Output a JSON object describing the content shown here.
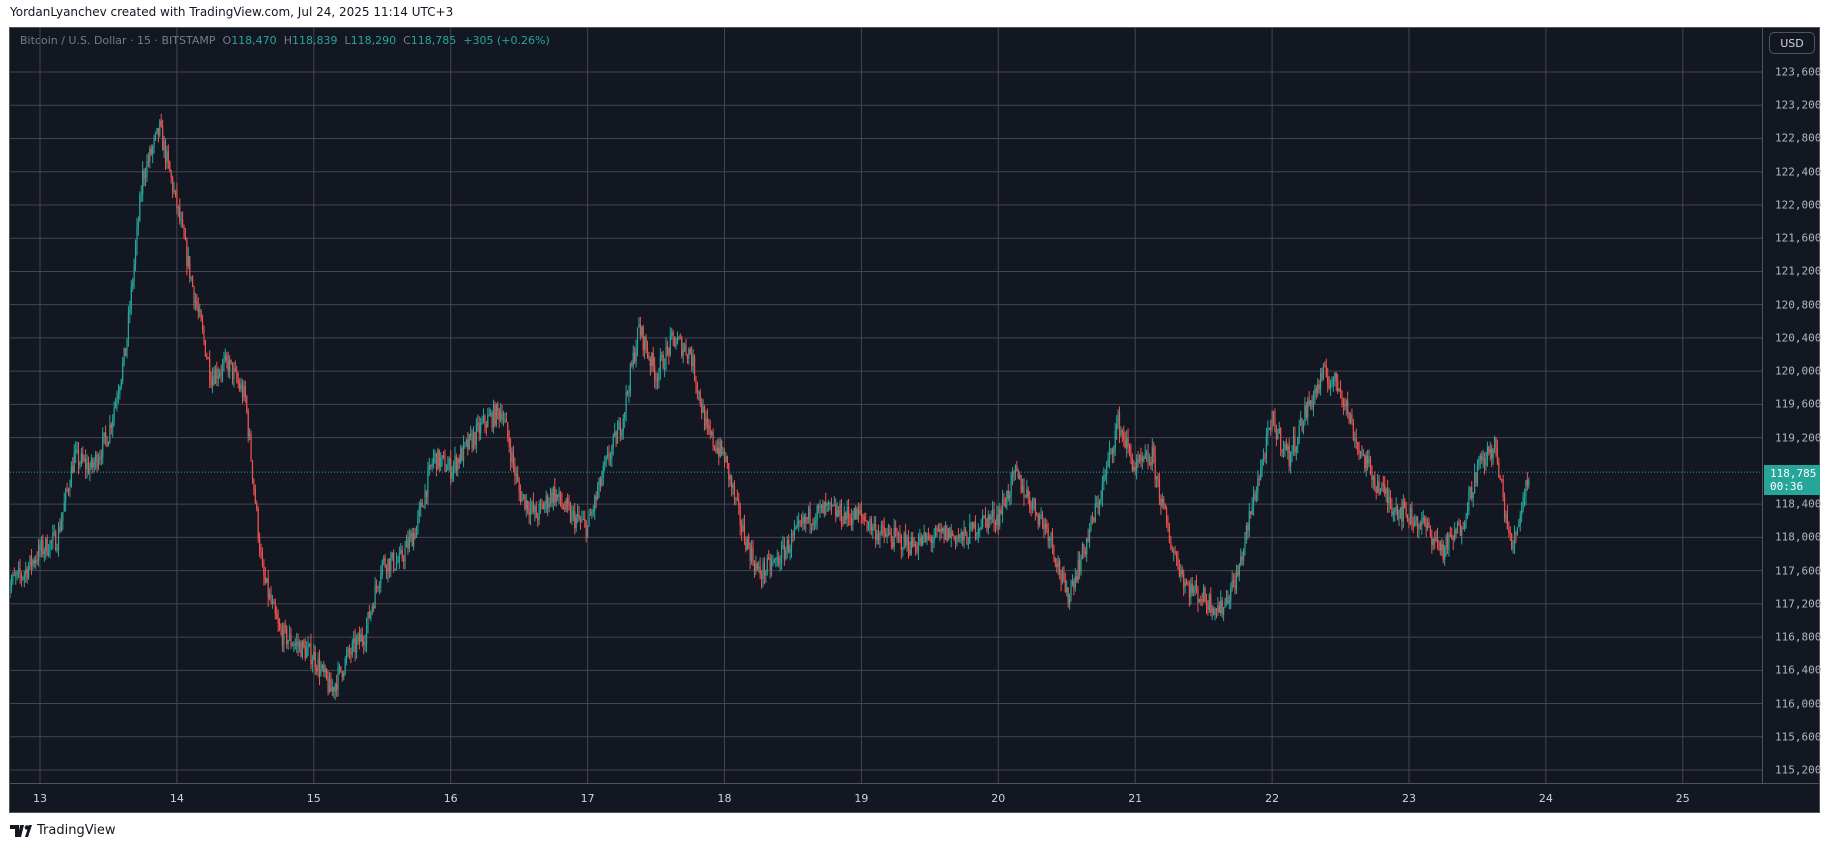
{
  "credit": "YordanLyanchev created with TradingView.com, Jul 24, 2025 11:14 UTC+3",
  "footer": {
    "brand": "TradingView"
  },
  "legend": {
    "symbol": "Bitcoin / U.S. Dollar · 15 · BITSTAMP",
    "o_label": "O",
    "o": "118,470",
    "h_label": "H",
    "h": "118,839",
    "l_label": "L",
    "l": "118,290",
    "c_label": "C",
    "c": "118,785",
    "change": "+305 (+0.26%)"
  },
  "price_axis": {
    "currency": "USD",
    "last_price": "118,785",
    "countdown": "00:36"
  },
  "colors": {
    "background": "#131722",
    "up": "#26a69a",
    "down": "#ef5350",
    "grid": "#434651"
  },
  "chart_data": {
    "type": "candlestick",
    "interval": "15m",
    "symbol": "BTCUSD",
    "ylim": [
      114900,
      124100
    ],
    "y_ticks": [
      "123,600",
      "123,200",
      "122,800",
      "122,400",
      "122,000",
      "121,600",
      "121,200",
      "120,800",
      "120,400",
      "120,000",
      "119,600",
      "119,200",
      "118,400",
      "118,000",
      "117,600",
      "117,200",
      "116,800",
      "116,400",
      "116,000",
      "115,600",
      "115,200"
    ],
    "y_tick_values": [
      123600,
      123200,
      122800,
      122400,
      122000,
      121600,
      121200,
      120800,
      120400,
      120000,
      119600,
      119200,
      118400,
      118000,
      117600,
      117200,
      116800,
      116400,
      116000,
      115600,
      115200
    ],
    "x_ticks": [
      "13",
      "14",
      "15",
      "16",
      "17",
      "18",
      "19",
      "20",
      "21",
      "22",
      "23",
      "24",
      "25"
    ],
    "x_tick_days": [
      13,
      14,
      15,
      16,
      17,
      17.999,
      19,
      20,
      21,
      22,
      23,
      24,
      25
    ],
    "last_price": 118785,
    "approx_close_path_3h": {
      "start": "2025-07-12 18:00",
      "closes": [
        117415,
        117555,
        117840,
        117980,
        118965,
        118825,
        119250,
        120230,
        122350,
        122910,
        121990,
        120935,
        119950,
        120090,
        119670,
        117555,
        116850,
        116710,
        116570,
        116150,
        116570,
        116850,
        117700,
        117700,
        118120,
        118965,
        118825,
        119100,
        119390,
        119530,
        118540,
        118260,
        118540,
        118260,
        118120,
        118825,
        119390,
        120520,
        119950,
        120380,
        120230,
        119250,
        118965,
        118120,
        117555,
        117700,
        117980,
        118260,
        118330,
        118260,
        118260,
        118050,
        117980,
        117910,
        117980,
        118050,
        117980,
        118190,
        118260,
        118750,
        118400,
        118050,
        117270,
        117840,
        118540,
        119390,
        118825,
        118965,
        117980,
        117415,
        117270,
        117130,
        117555,
        118540,
        119390,
        118965,
        119530,
        119950,
        119810,
        119100,
        118680,
        118400,
        118260,
        118120,
        117840,
        118120,
        118825,
        119100,
        117840,
        118785
      ]
    }
  }
}
